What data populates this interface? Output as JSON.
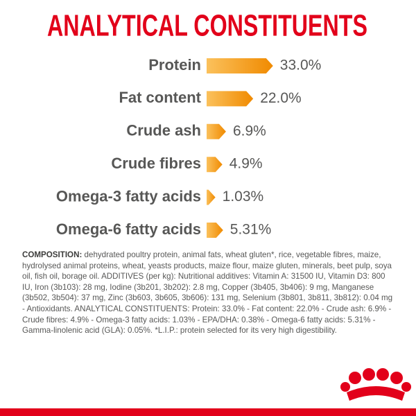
{
  "chart_data": {
    "type": "bar",
    "orientation": "horizontal",
    "title": "ANALYTICAL CONSTITUENTS",
    "categories": [
      "Protein",
      "Fat content",
      "Crude ash",
      "Crude fibres",
      "Omega-3 fatty acids",
      "Omega-6 fatty acids"
    ],
    "values": [
      33.0,
      22.0,
      6.9,
      4.9,
      1.03,
      5.31
    ],
    "value_labels": [
      "33.0%",
      "22.0%",
      "6.9%",
      "4.9%",
      "1.03%",
      "5.31%"
    ],
    "color": "#f39200"
  },
  "composition": {
    "heading": "COMPOSITION:",
    "text": "dehydrated poultry protein, animal fats, wheat gluten*, rice, vegetable fibres, maize, hydrolysed animal proteins, wheat, yeasts products, maize flour, maize gluten, minerals, beet pulp, soya oil, fish oil, borage oil. ADDITIVES (per kg): Nutritional additives: Vitamin A: 31500 IU, Vitamin D3: 800 IU, Iron (3b103): 28 mg, Iodine (3b201, 3b202): 2.8 mg, Copper (3b405, 3b406): 9 mg, Manganese (3b502, 3b504): 37 mg, Zinc (3b603, 3b605, 3b606): 131 mg, Selenium (3b801, 3b811, 3b812): 0.04 mg - Antioxidants. ANALYTICAL CONSTITUENTS: Protein: 33.0% - Fat content: 22.0% - Crude ash: 6.9% - Crude fibres: 4.9% - Omega-3 fatty acids: 1.03% - EPA/DHA: 0.38% - Omega-6 fatty acids: 5.31% - Gamma-linolenic acid (GLA): 0.05%. *L.I.P.: protein selected for its very high digestibility."
  }
}
